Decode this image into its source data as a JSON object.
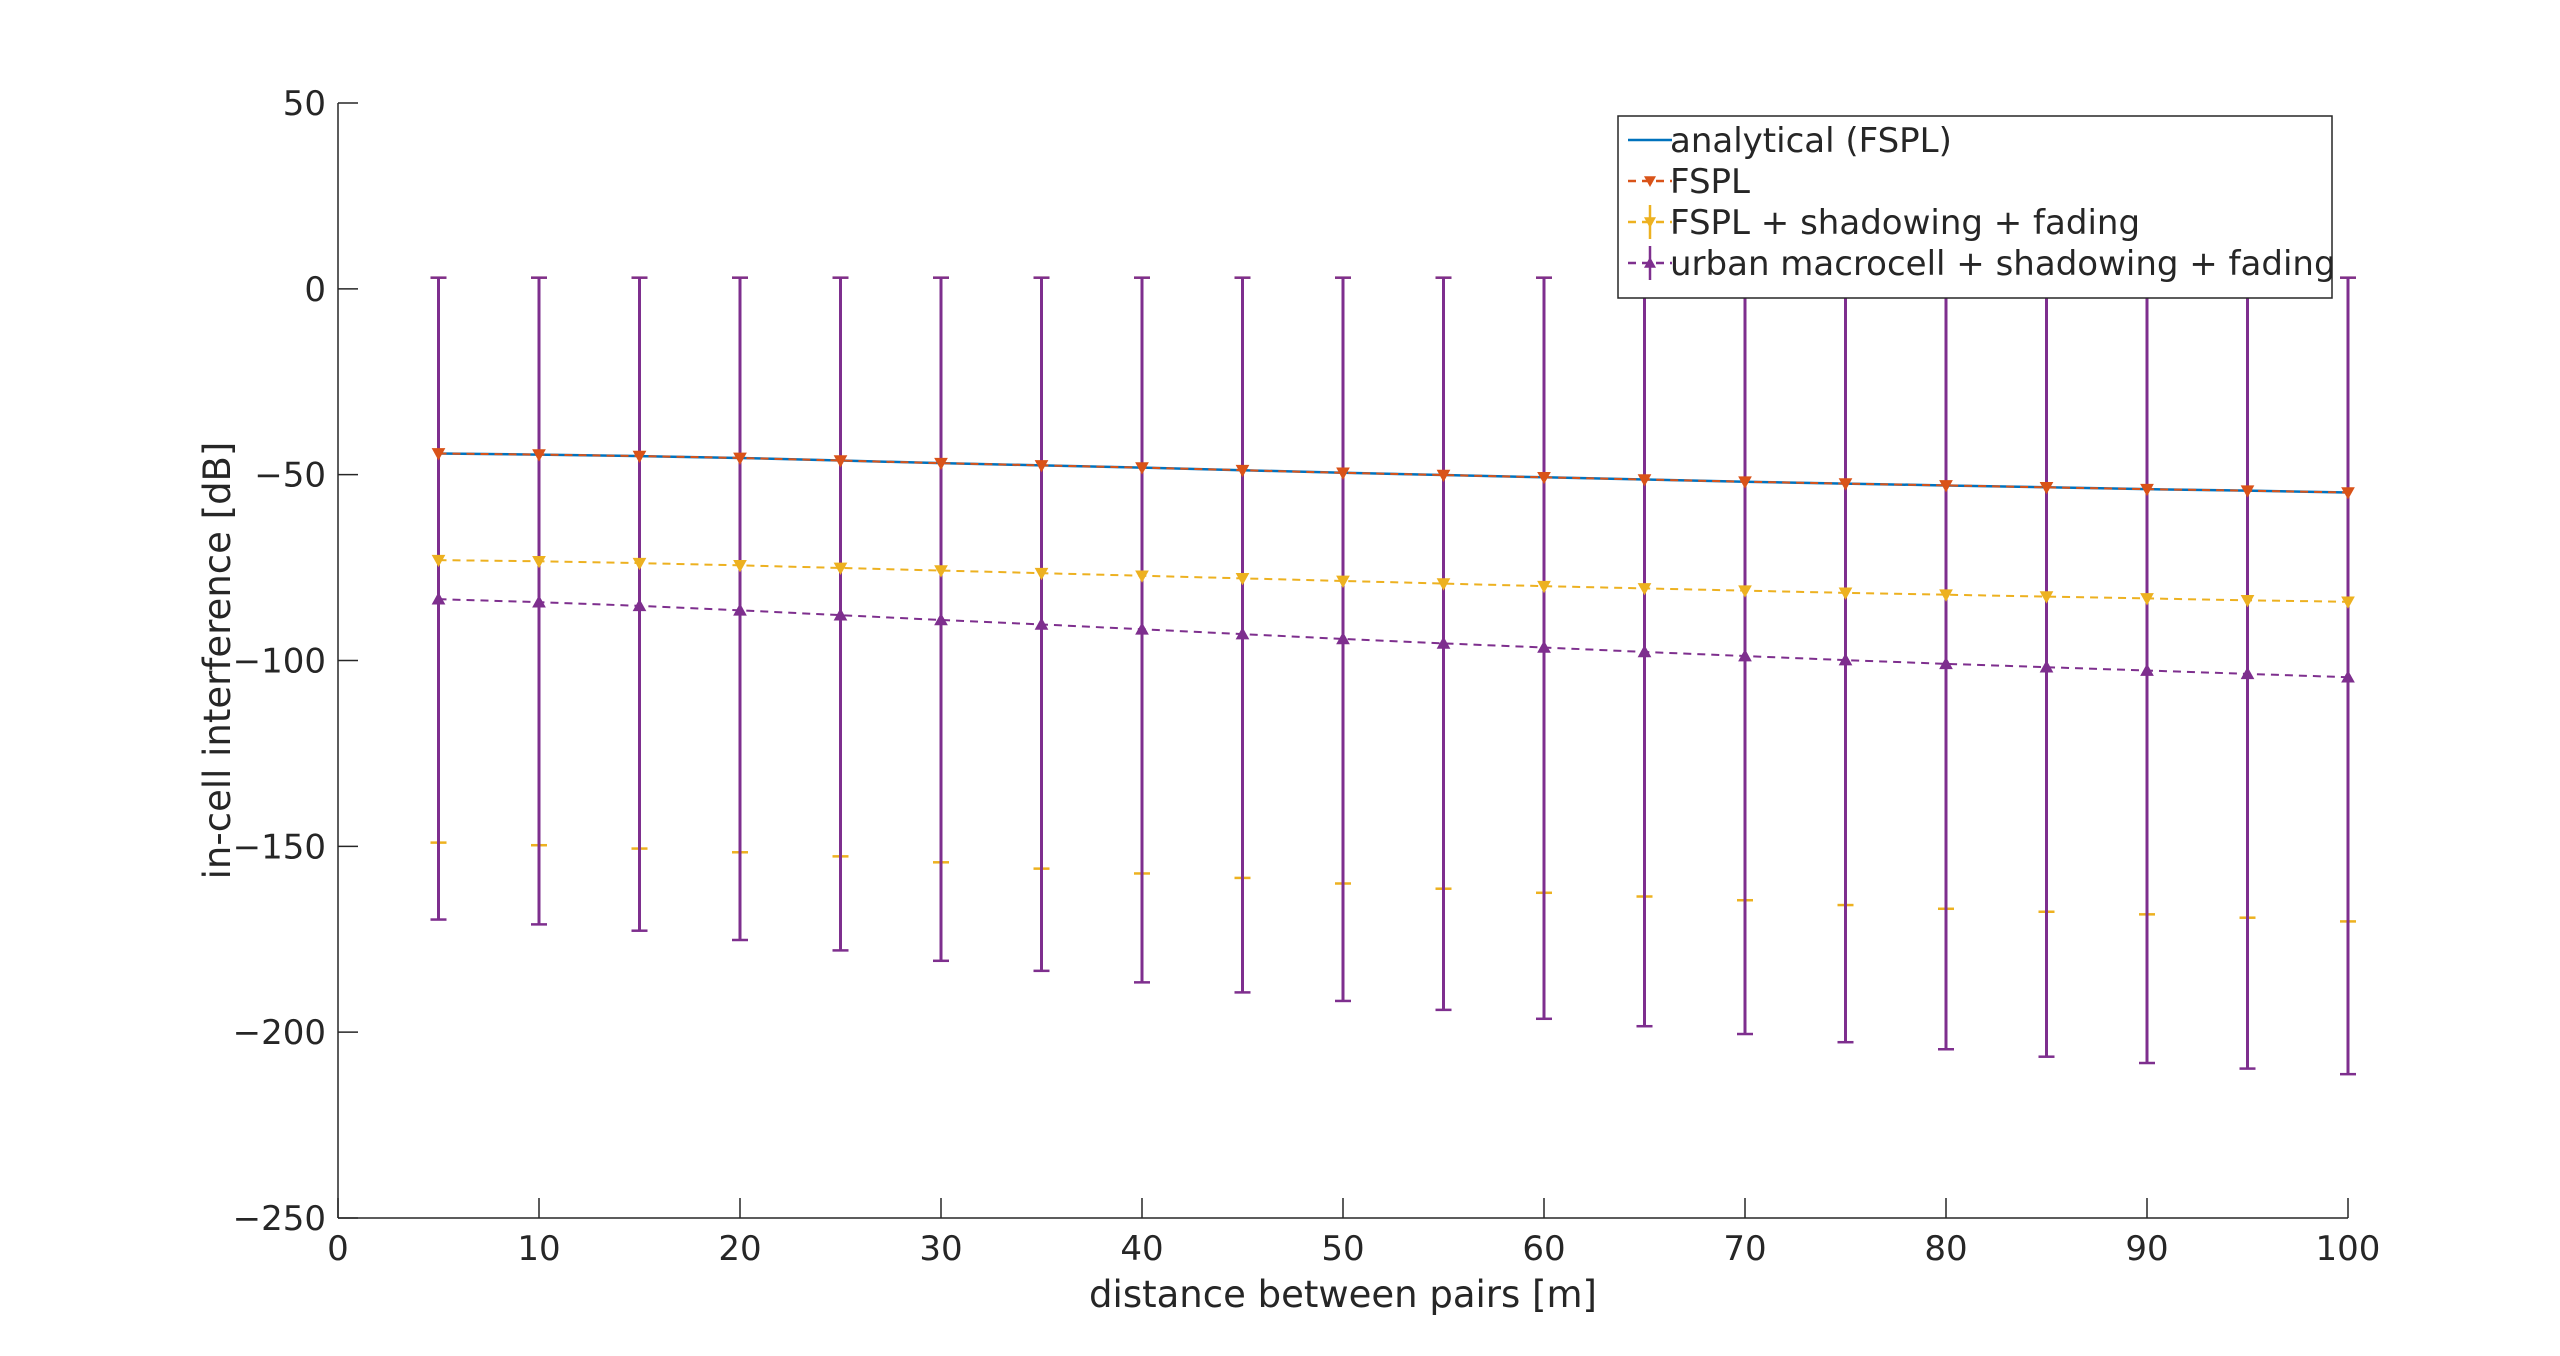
{
  "chart_data": {
    "type": "line",
    "title": "",
    "xlabel": "distance between pairs [m]",
    "ylabel": "in-cell interference [dB]",
    "xlim": [
      0,
      100
    ],
    "ylim": [
      -250,
      50
    ],
    "xticks": [
      0,
      10,
      20,
      30,
      40,
      50,
      60,
      70,
      80,
      90,
      100
    ],
    "yticks": [
      -250,
      -200,
      -150,
      -100,
      -50,
      0,
      50
    ],
    "grid": false,
    "legend_position": "top-right",
    "x": [
      5,
      10,
      15,
      20,
      25,
      30,
      35,
      40,
      45,
      50,
      55,
      60,
      65,
      70,
      75,
      80,
      85,
      90,
      95,
      100
    ],
    "series": [
      {
        "name": "analytical (FSPL)",
        "color": "#0072BD",
        "style": "solid",
        "marker": "none",
        "values": [
          -44.3,
          -44.6,
          -45.0,
          -45.5,
          -46.2,
          -46.9,
          -47.5,
          -48.1,
          -48.8,
          -49.5,
          -50.1,
          -50.7,
          -51.3,
          -51.9,
          -52.4,
          -52.9,
          -53.4,
          -53.9,
          -54.3,
          -54.8
        ]
      },
      {
        "name": "FSPL",
        "color": "#D95319",
        "style": "dashed",
        "marker": "triangle-down",
        "values": [
          -44.3,
          -44.6,
          -45.0,
          -45.5,
          -46.2,
          -46.9,
          -47.5,
          -48.1,
          -48.8,
          -49.5,
          -50.1,
          -50.7,
          -51.3,
          -51.9,
          -52.4,
          -52.9,
          -53.4,
          -53.9,
          -54.3,
          -54.8
        ]
      },
      {
        "name": "FSPL + shadowing + fading",
        "color": "#EDB120",
        "style": "dashed",
        "marker": "triangle-down",
        "values": [
          -73.0,
          -73.3,
          -73.8,
          -74.4,
          -75.1,
          -75.8,
          -76.5,
          -77.2,
          -77.9,
          -78.6,
          -79.3,
          -80.0,
          -80.6,
          -81.2,
          -81.8,
          -82.3,
          -82.8,
          -83.3,
          -83.8,
          -84.2
        ],
        "error_upper": [
          3,
          3,
          3,
          3,
          3,
          3,
          3,
          3,
          3,
          3,
          3,
          3,
          3,
          3,
          3,
          3,
          3,
          3,
          3,
          3
        ],
        "error_lower": [
          -149,
          -149.7,
          -150.6,
          -151.6,
          -152.7,
          -154.3,
          -156,
          -157.3,
          -158.5,
          -160,
          -161.4,
          -162.5,
          -163.5,
          -164.5,
          -165.8,
          -166.8,
          -167.6,
          -168.3,
          -169.2,
          -170.2
        ]
      },
      {
        "name": "urban macrocell + shadowing + fading",
        "color": "#7E2F8E",
        "style": "dashed",
        "marker": "triangle-up",
        "values": [
          -83.5,
          -84.3,
          -85.3,
          -86.5,
          -87.8,
          -89.1,
          -90.3,
          -91.6,
          -92.9,
          -94.2,
          -95.4,
          -96.5,
          -97.7,
          -98.8,
          -99.9,
          -100.9,
          -101.8,
          -102.7,
          -103.6,
          -104.5
        ],
        "error_upper": [
          3,
          3,
          3,
          3,
          3,
          3,
          3,
          3,
          3,
          3,
          3,
          3,
          3,
          3,
          3,
          3,
          3,
          3,
          3,
          3
        ],
        "error_lower": [
          -169.7,
          -171,
          -172.7,
          -175.2,
          -178,
          -180.8,
          -183.5,
          -186.6,
          -189.3,
          -191.6,
          -194,
          -196.4,
          -198.4,
          -200.5,
          -202.7,
          -204.6,
          -206.6,
          -208.3,
          -209.8,
          -211.3
        ]
      }
    ]
  }
}
